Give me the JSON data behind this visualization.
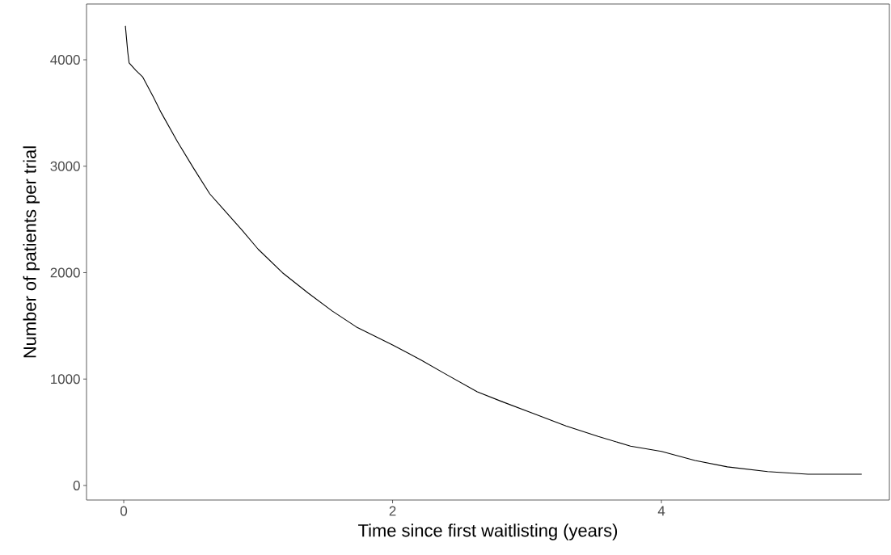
{
  "chart_data": {
    "type": "line",
    "xlabel": "Time since first waitlisting (years)",
    "ylabel": "Number of patients per trial",
    "x": [
      0.012,
      0.03,
      0.04,
      0.09,
      0.14,
      0.22,
      0.28,
      0.4,
      0.52,
      0.64,
      0.76,
      0.88,
      1.0,
      1.18,
      1.37,
      1.55,
      1.73,
      2.0,
      2.21,
      2.39,
      2.63,
      2.81,
      3.05,
      3.29,
      3.53,
      3.77,
      4.0,
      4.25,
      4.49,
      4.79,
      5.09,
      5.49
    ],
    "values": [
      4320,
      4070,
      3970,
      3900,
      3840,
      3650,
      3500,
      3230,
      2980,
      2740,
      2570,
      2400,
      2220,
      2000,
      1810,
      1640,
      1490,
      1320,
      1180,
      1050,
      880,
      790,
      675,
      560,
      460,
      370,
      320,
      235,
      175,
      130,
      106,
      106
    ],
    "color": "#000000",
    "line_style": "solid",
    "marker": "none",
    "grid": false,
    "xlim": [
      -0.277,
      5.696
    ],
    "ylim": [
      -137,
      4524
    ],
    "xticks": [
      0,
      2,
      4
    ],
    "yticks": [
      0,
      1000,
      2000,
      3000,
      4000
    ]
  }
}
